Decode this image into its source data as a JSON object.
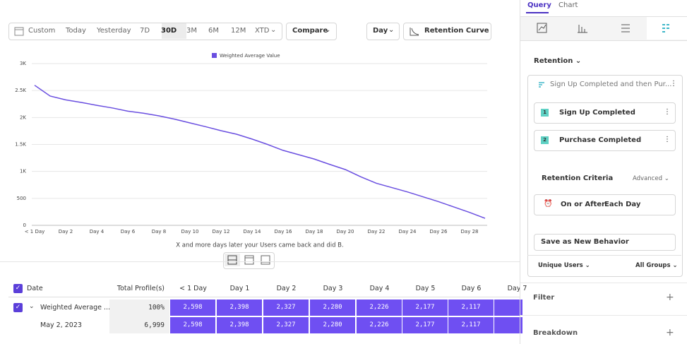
{
  "toolbar": {
    "ranges": [
      "Custom",
      "Today",
      "Yesterday",
      "7D",
      "30D",
      "3M",
      "6M",
      "12M",
      "XTD"
    ],
    "compare": "Compare",
    "interval": "Day",
    "view": "Retention Curve"
  },
  "chart_data": {
    "type": "line",
    "legend_position": "top",
    "x_label": "X and more days later your Users came back and did B.",
    "categories": [
      "< 1 Day",
      null,
      "Day 2",
      null,
      "Day 4",
      null,
      "Day 6",
      null,
      "Day 8",
      null,
      "Day 10",
      null,
      "Day 12",
      null,
      "Day 14",
      null,
      "Day 16",
      null,
      "Day 18",
      null,
      "Day 20",
      null,
      "Day 22",
      null,
      "Day 24",
      null,
      "Day 26",
      null,
      "Day 28",
      null
    ],
    "series": [
      {
        "name": "Weighted Average Value",
        "color": "#6a4fe0",
        "values": [
          2598,
          2398,
          2327,
          2280,
          2226,
          2177,
          2117,
          2080,
          2030,
          1970,
          1900,
          1830,
          1755,
          1690,
          1600,
          1500,
          1390,
          1310,
          1230,
          1130,
          1035,
          900,
          780,
          700,
          620,
          530,
          440,
          340,
          240,
          130
        ]
      }
    ],
    "ylim": [
      0,
      3000
    ],
    "yticks": [
      0,
      500,
      {
        "value": 1000,
        "label": "1K"
      },
      {
        "value": 1500,
        "label": "1.5K"
      },
      {
        "value": 2000,
        "label": "2K"
      },
      {
        "value": 2500,
        "label": "2.5K"
      },
      {
        "value": 3000,
        "label": "3K"
      }
    ],
    "grid": true
  },
  "table": {
    "headers": [
      "Date",
      "Total Profile(s)",
      "< 1 Day",
      "Day 1",
      "Day 2",
      "Day 3",
      "Day 4",
      "Day 5",
      "Day 6",
      "Day 7"
    ],
    "rows": [
      [
        "Weighted Average ...",
        "100%",
        "2,598",
        "2,398",
        "2,327",
        "2,280",
        "2,226",
        "2,177",
        "2,117"
      ],
      [
        "May 2, 2023",
        "6,999",
        "2,598",
        "2,398",
        "2,327",
        "2,280",
        "2,226",
        "2,177",
        "2,117"
      ]
    ]
  },
  "panel": {
    "tabs": [
      "Query",
      "Chart"
    ],
    "report": "Retention",
    "behavior": "Sign Up Completed and then Pur...",
    "steps": [
      {
        "num": "1",
        "label": "Sign Up Completed"
      },
      {
        "num": "2",
        "label": "Purchase Completed"
      }
    ],
    "criteria_title": "Retention Criteria",
    "advanced": "Advanced",
    "criteria": [
      "On or After",
      "Each Day"
    ],
    "save": "Save as New Behavior",
    "measure": "Unique Users",
    "groups": "All Groups",
    "filter": "Filter",
    "breakdown": "Breakdown"
  }
}
